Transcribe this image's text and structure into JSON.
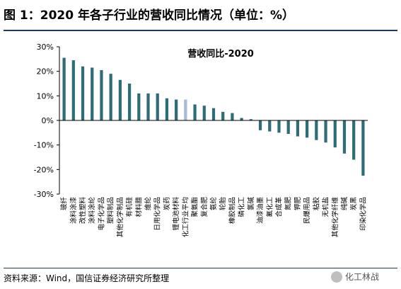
{
  "figure": {
    "title": "图 1：2020 年各子行业的营收同比情况（单位：%）",
    "source": "资料来源：Wind，国信证券经济研究所整理",
    "logo_text": "化工林战"
  },
  "chart_data": {
    "type": "bar",
    "title": "营收同比-2020",
    "xlabel": "",
    "ylabel": "",
    "ylim": [
      -30,
      30
    ],
    "yticks": [
      30,
      20,
      10,
      0,
      -10,
      -20,
      -30
    ],
    "ytick_labels": [
      "30%",
      "20%",
      "10%",
      "0%",
      "-10%",
      "-20%",
      "-30%"
    ],
    "grid": false,
    "legend": false,
    "categories": [
      "玻纤",
      "涂料涂漆",
      "改性塑料",
      "涂料涂纶",
      "电子化学品",
      "塑料制品",
      "其他化学制品",
      "有机硅",
      "材料腊",
      "维纶",
      "日用化学品",
      "炭药",
      "锂电池材料",
      "化工行业平均",
      "聚氨酯",
      "复合肥",
      "氨纶",
      "轮胎",
      "橡胶制品",
      "磷化工",
      "氯碱",
      "油漆油墨",
      "氟化工",
      "合成革",
      "氮肥",
      "钾肥",
      "民爆用品",
      "粘胶",
      "无机盐",
      "其他化学纤维",
      "纯碱",
      "炭黑",
      "印染化学品"
    ],
    "values": [
      25.5,
      24.5,
      22,
      21.5,
      20.5,
      19,
      16.5,
      15,
      11,
      11,
      11,
      9,
      8.5,
      8.5,
      6.5,
      6,
      5,
      3.5,
      3,
      1,
      0.5,
      -4,
      -4.5,
      -5,
      -5.5,
      -6.5,
      -7,
      -8,
      -9,
      -11,
      -13.5,
      -16,
      -22.5
    ],
    "highlight_category": "化工行业平均",
    "colors": {
      "bar": "#2e6d78",
      "highlight": "#a6bcd6"
    }
  }
}
